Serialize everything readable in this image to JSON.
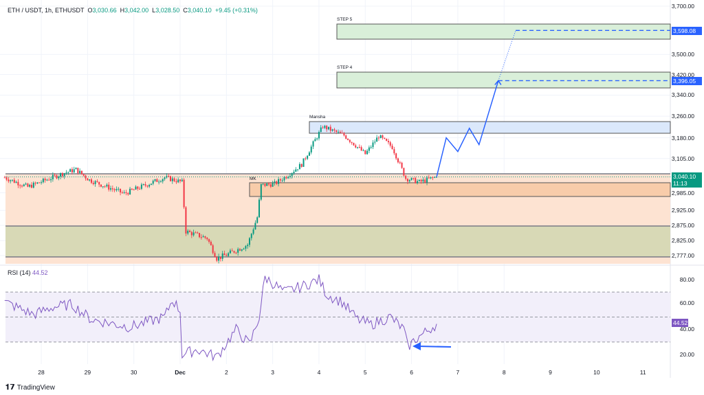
{
  "header": {
    "symbol": "ETH / USDT, 1h, ETHUSDT",
    "o_label": "O",
    "o": "3,030.66",
    "h_label": "H",
    "h": "3,042.00",
    "l_label": "L",
    "l": "3,028.50",
    "c_label": "C",
    "c": "3,040.10",
    "change": "+9.45 (+0.31%)"
  },
  "rsi": {
    "label": "RSI (14)",
    "value": "44.52",
    "axis": [
      "80.00",
      "60.00",
      "40.00",
      "20.00"
    ],
    "upper": 70,
    "middle": 50,
    "lower": 30
  },
  "price_axis": [
    "3,700.00",
    "3,500.00",
    "3,420.00",
    "3,340.00",
    "3,260.00",
    "3,180.00",
    "3,105.00",
    "2,985.00",
    "2,925.00",
    "2,875.00",
    "2,825.00",
    "2,777.00"
  ],
  "price_axis_values": [
    3700,
    3500,
    3420,
    3340,
    3260,
    3180,
    3105,
    2985,
    2925,
    2875,
    2825,
    2777
  ],
  "tags": {
    "step5": "3,598.08",
    "step4": "3,396.05",
    "last": "3,040.10",
    "countdown": "11:13"
  },
  "time_axis": [
    "28",
    "29",
    "30",
    "Dec",
    "2",
    "3",
    "4",
    "5",
    "6",
    "7",
    "8",
    "9",
    "10",
    "11"
  ],
  "zones": {
    "step5": "STEP 5",
    "step4": "STEP 4",
    "mansha": "Mansha",
    "mk": "MK"
  },
  "colors": {
    "up": "#089981",
    "down": "#f23645",
    "projection": "#2962ff",
    "rsi": "#7e57c2"
  },
  "chart_data": {
    "type": "candlestick",
    "price_keypoints": [
      [
        5,
        3038
      ],
      [
        17,
        3005
      ],
      [
        36,
        3054
      ],
      [
        42,
        3066
      ],
      [
        49,
        3029
      ],
      [
        67,
        2982
      ],
      [
        88,
        3038
      ],
      [
        97,
        3022
      ],
      [
        99,
        2855
      ],
      [
        110,
        2833
      ],
      [
        115,
        2768
      ],
      [
        120,
        2779
      ],
      [
        131,
        2812
      ],
      [
        136,
        2902
      ],
      [
        138,
        3011
      ],
      [
        145,
        3016
      ],
      [
        152,
        3047
      ],
      [
        159,
        3084
      ],
      [
        170,
        3222
      ],
      [
        174,
        3209
      ],
      [
        181,
        3189
      ],
      [
        188,
        3146
      ],
      [
        192,
        3121
      ],
      [
        199,
        3186
      ],
      [
        206,
        3146
      ],
      [
        213,
        3035
      ],
      [
        220,
        3022
      ],
      [
        229,
        3040
      ]
    ],
    "rsi_keypoints": [
      [
        5,
        62
      ],
      [
        20,
        52
      ],
      [
        30,
        58
      ],
      [
        40,
        60
      ],
      [
        50,
        48
      ],
      [
        70,
        42
      ],
      [
        88,
        50
      ],
      [
        92,
        64
      ],
      [
        96,
        55
      ],
      [
        97,
        20
      ],
      [
        105,
        24
      ],
      [
        115,
        18
      ],
      [
        125,
        40
      ],
      [
        132,
        28
      ],
      [
        137,
        50
      ],
      [
        140,
        82
      ],
      [
        150,
        70
      ],
      [
        160,
        75
      ],
      [
        168,
        80
      ],
      [
        172,
        68
      ],
      [
        180,
        62
      ],
      [
        188,
        48
      ],
      [
        195,
        44
      ],
      [
        205,
        50
      ],
      [
        212,
        40
      ],
      [
        214,
        26
      ],
      [
        218,
        32
      ],
      [
        229,
        44.5
      ]
    ],
    "projection": [
      [
        229,
        3040
      ],
      [
        234,
        3180
      ],
      [
        240,
        3130
      ],
      [
        246,
        3215
      ],
      [
        251,
        3155
      ],
      [
        261,
        3396
      ],
      [
        270,
        3598
      ]
    ]
  },
  "footer": {
    "brand": "TradingView"
  }
}
